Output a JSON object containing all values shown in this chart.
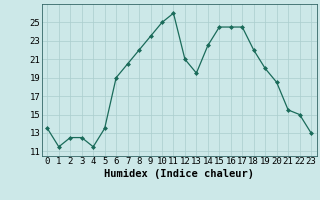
{
  "x": [
    0,
    1,
    2,
    3,
    4,
    5,
    6,
    7,
    8,
    9,
    10,
    11,
    12,
    13,
    14,
    15,
    16,
    17,
    18,
    19,
    20,
    21,
    22,
    23
  ],
  "y": [
    13.5,
    11.5,
    12.5,
    12.5,
    11.5,
    13.5,
    19.0,
    20.5,
    22.0,
    23.5,
    25.0,
    26.0,
    21.0,
    19.5,
    22.5,
    24.5,
    24.5,
    24.5,
    22.0,
    20.0,
    18.5,
    15.5,
    15.0,
    13.0
  ],
  "xlabel": "Humidex (Indice chaleur)",
  "ylabel_ticks": [
    11,
    13,
    15,
    17,
    19,
    21,
    23,
    25
  ],
  "xlim": [
    -0.5,
    23.5
  ],
  "ylim": [
    10.5,
    27.0
  ],
  "line_color": "#1a6b5a",
  "marker_color": "#1a6b5a",
  "bg_color": "#cce8e8",
  "grid_color": "#aacece",
  "xlabel_fontsize": 7.5,
  "tick_fontsize": 6.5
}
